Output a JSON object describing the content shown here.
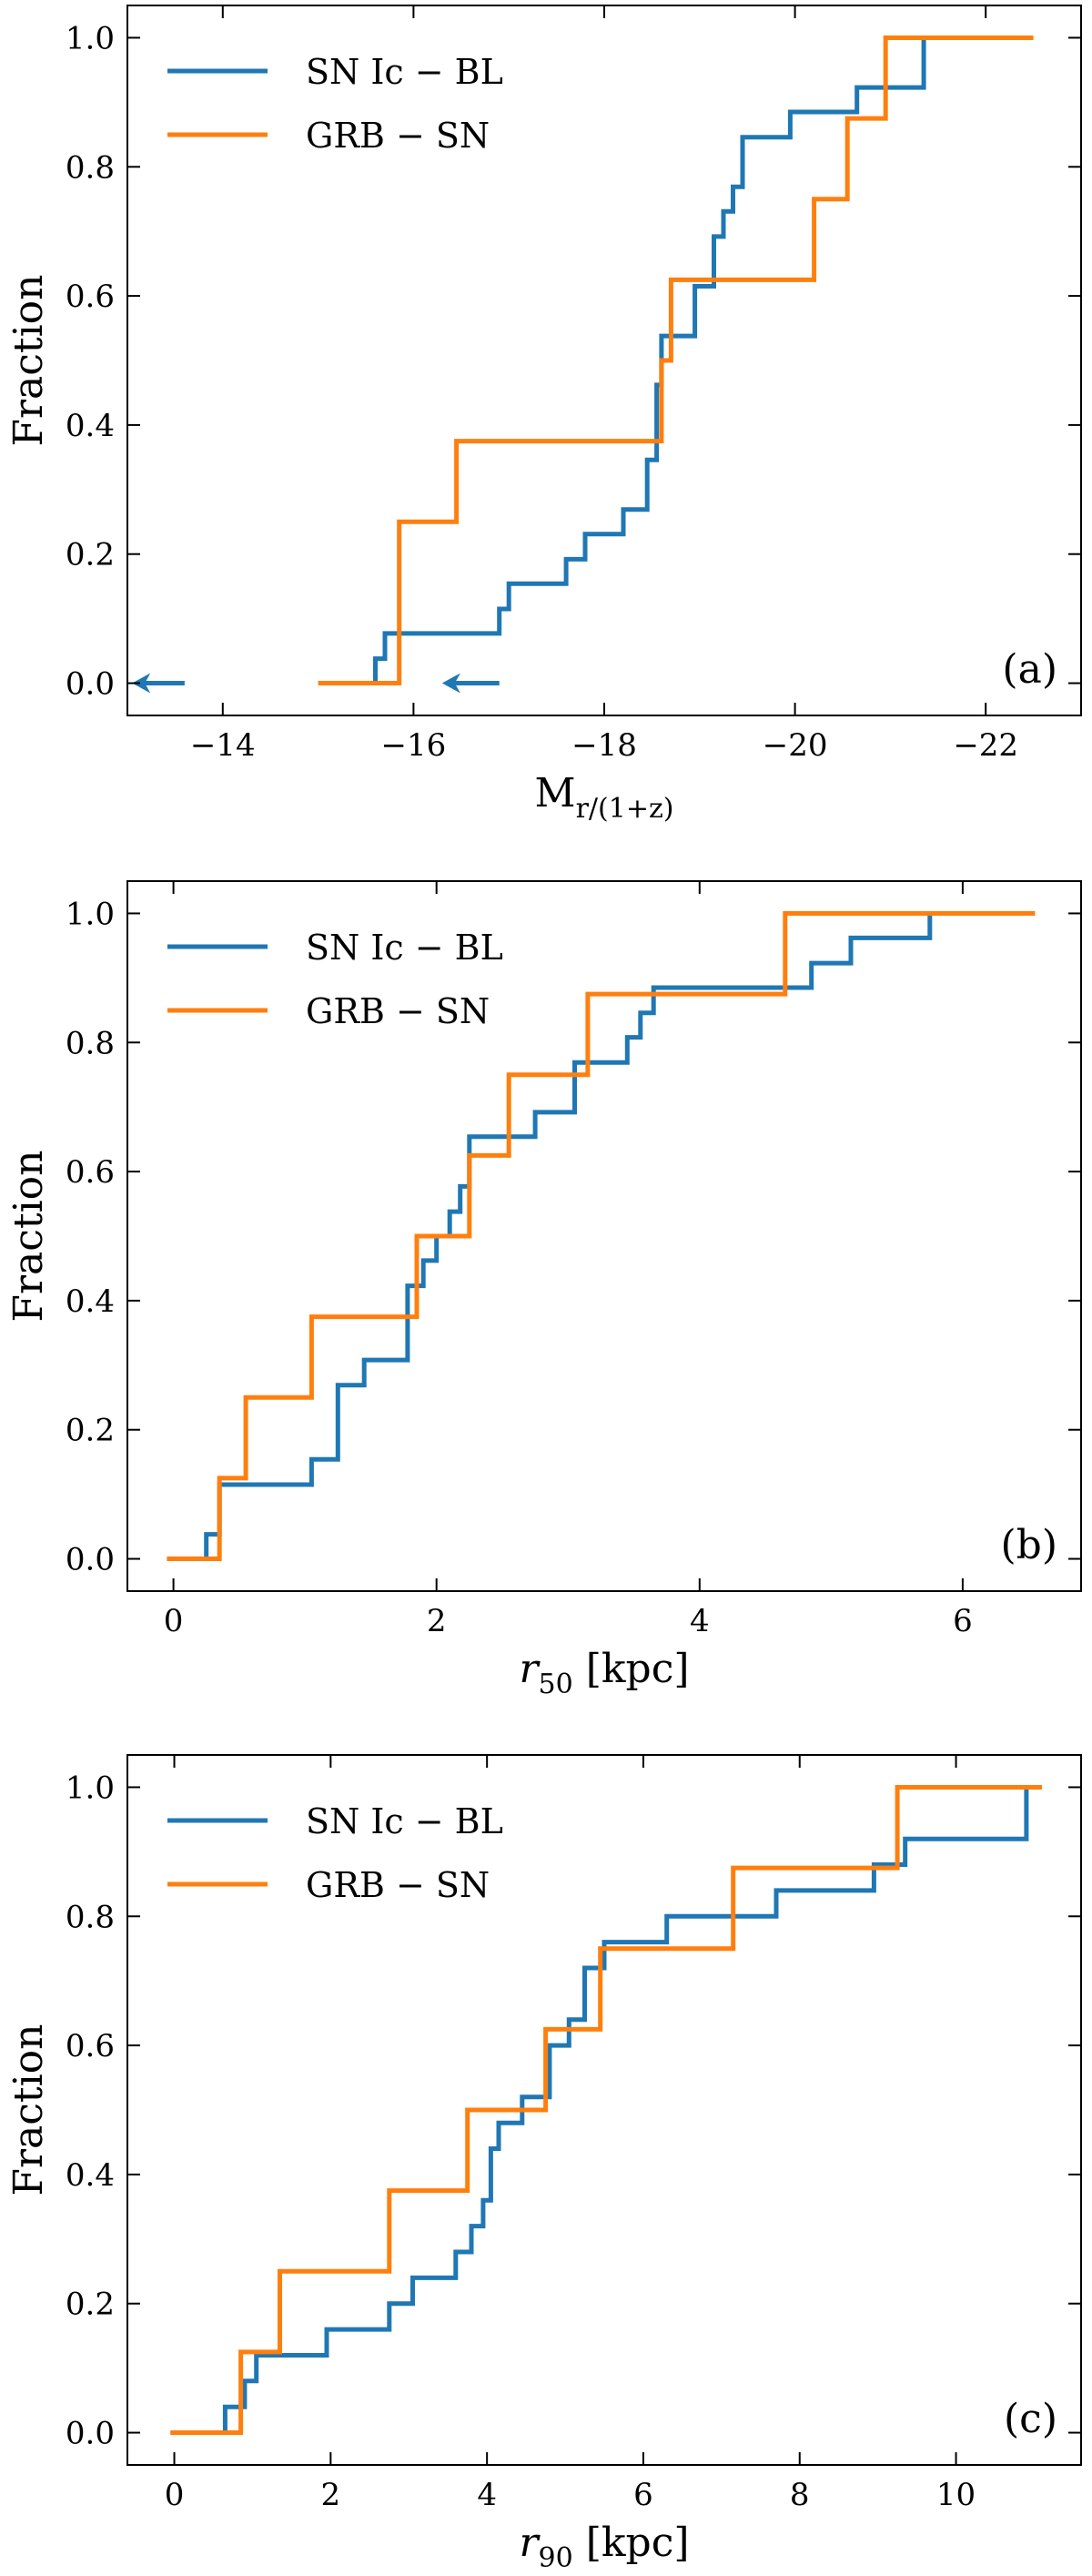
{
  "figure": {
    "colors": {
      "ic_bl": "#1f77b4",
      "grb_sn": "#ff7f0e",
      "axis": "#000000"
    }
  },
  "chart_data": [
    {
      "type": "line",
      "panel_label": "(a)",
      "xlabel_main": "M",
      "xlabel_sub": "r/(1+z)",
      "ylabel": "Fraction",
      "xlim": [
        -13,
        -23
      ],
      "ylim": [
        -0.05,
        1.05
      ],
      "xticks": [
        -14,
        -16,
        -18,
        -20,
        -22
      ],
      "xtick_labels": [
        "−14",
        "−16",
        "−18",
        "−20",
        "−22"
      ],
      "yticks": [
        0.0,
        0.2,
        0.4,
        0.6,
        0.8,
        1.0
      ],
      "ytick_labels": [
        "0.0",
        "0.2",
        "0.4",
        "0.6",
        "0.8",
        "1.0"
      ],
      "legend": [
        "SN Ic − BL",
        "GRB − SN"
      ],
      "legend_loc": "upper-left",
      "series": [
        {
          "name": "SN Ic − BL",
          "color": "#1f77b4",
          "points": [
            [
              -15.6,
              0
            ],
            [
              -15.6,
              0.038
            ],
            [
              -15.7,
              0.038
            ],
            [
              -15.7,
              0.077
            ],
            [
              -16.9,
              0.077
            ],
            [
              -16.9,
              0.115
            ],
            [
              -17.0,
              0.115
            ],
            [
              -17.0,
              0.154
            ],
            [
              -17.6,
              0.154
            ],
            [
              -17.6,
              0.192
            ],
            [
              -17.8,
              0.192
            ],
            [
              -17.8,
              0.231
            ],
            [
              -18.2,
              0.231
            ],
            [
              -18.2,
              0.269
            ],
            [
              -18.45,
              0.269
            ],
            [
              -18.45,
              0.346
            ],
            [
              -18.55,
              0.346
            ],
            [
              -18.55,
              0.462
            ],
            [
              -18.6,
              0.462
            ],
            [
              -18.6,
              0.538
            ],
            [
              -18.95,
              0.538
            ],
            [
              -18.95,
              0.615
            ],
            [
              -19.15,
              0.615
            ],
            [
              -19.15,
              0.692
            ],
            [
              -19.25,
              0.692
            ],
            [
              -19.25,
              0.731
            ],
            [
              -19.35,
              0.731
            ],
            [
              -19.35,
              0.769
            ],
            [
              -19.45,
              0.769
            ],
            [
              -19.45,
              0.846
            ],
            [
              -19.95,
              0.846
            ],
            [
              -19.95,
              0.885
            ],
            [
              -20.65,
              0.885
            ],
            [
              -20.65,
              0.923
            ],
            [
              -21.35,
              0.923
            ],
            [
              -21.35,
              1.0
            ]
          ]
        },
        {
          "name": "GRB − SN",
          "color": "#ff7f0e",
          "points": [
            [
              -15.0,
              0
            ],
            [
              -15.85,
              0
            ],
            [
              -15.85,
              0.25
            ],
            [
              -16.45,
              0.25
            ],
            [
              -16.45,
              0.375
            ],
            [
              -18.6,
              0.375
            ],
            [
              -18.6,
              0.5
            ],
            [
              -18.7,
              0.5
            ],
            [
              -18.7,
              0.625
            ],
            [
              -20.2,
              0.625
            ],
            [
              -20.2,
              0.75
            ],
            [
              -20.55,
              0.75
            ],
            [
              -20.55,
              0.875
            ],
            [
              -20.95,
              0.875
            ],
            [
              -20.95,
              1.0
            ],
            [
              -22.5,
              1.0
            ]
          ]
        }
      ],
      "upper_limit_arrows": [
        {
          "from": [
            -13.6,
            0
          ],
          "to": [
            -13.05,
            0
          ],
          "color": "#1f77b4"
        },
        {
          "from": [
            -16.9,
            0
          ],
          "to": [
            -16.3,
            0
          ],
          "color": "#1f77b4"
        }
      ]
    },
    {
      "type": "line",
      "panel_label": "(b)",
      "xlabel_main": "r",
      "xlabel_sub": "50",
      "xlabel_unit": " [kpc]",
      "ylabel": "Fraction",
      "xlim": [
        -0.35,
        6.9
      ],
      "ylim": [
        -0.05,
        1.05
      ],
      "xticks": [
        0,
        2,
        4,
        6
      ],
      "xtick_labels": [
        "0",
        "2",
        "4",
        "6"
      ],
      "yticks": [
        0.0,
        0.2,
        0.4,
        0.6,
        0.8,
        1.0
      ],
      "ytick_labels": [
        "0.0",
        "0.2",
        "0.4",
        "0.6",
        "0.8",
        "1.0"
      ],
      "legend": [
        "SN Ic − BL",
        "GRB − SN"
      ],
      "legend_loc": "upper-left",
      "series": [
        {
          "name": "SN Ic − BL",
          "color": "#1f77b4",
          "points": [
            [
              0.25,
              0
            ],
            [
              0.25,
              0.038
            ],
            [
              0.35,
              0.038
            ],
            [
              0.35,
              0.115
            ],
            [
              1.05,
              0.115
            ],
            [
              1.05,
              0.154
            ],
            [
              1.25,
              0.154
            ],
            [
              1.25,
              0.269
            ],
            [
              1.45,
              0.269
            ],
            [
              1.45,
              0.308
            ],
            [
              1.78,
              0.308
            ],
            [
              1.78,
              0.423
            ],
            [
              1.9,
              0.423
            ],
            [
              1.9,
              0.462
            ],
            [
              2.0,
              0.462
            ],
            [
              2.0,
              0.5
            ],
            [
              2.1,
              0.5
            ],
            [
              2.1,
              0.538
            ],
            [
              2.18,
              0.538
            ],
            [
              2.18,
              0.577
            ],
            [
              2.25,
              0.577
            ],
            [
              2.25,
              0.654
            ],
            [
              2.75,
              0.654
            ],
            [
              2.75,
              0.692
            ],
            [
              3.05,
              0.692
            ],
            [
              3.05,
              0.769
            ],
            [
              3.45,
              0.769
            ],
            [
              3.45,
              0.808
            ],
            [
              3.55,
              0.808
            ],
            [
              3.55,
              0.846
            ],
            [
              3.65,
              0.846
            ],
            [
              3.65,
              0.885
            ],
            [
              4.85,
              0.885
            ],
            [
              4.85,
              0.923
            ],
            [
              5.15,
              0.923
            ],
            [
              5.15,
              0.962
            ],
            [
              5.75,
              0.962
            ],
            [
              5.75,
              1.0
            ]
          ]
        },
        {
          "name": "GRB − SN",
          "color": "#ff7f0e",
          "points": [
            [
              -0.05,
              0
            ],
            [
              0.35,
              0
            ],
            [
              0.35,
              0.125
            ],
            [
              0.55,
              0.125
            ],
            [
              0.55,
              0.25
            ],
            [
              1.05,
              0.25
            ],
            [
              1.05,
              0.375
            ],
            [
              1.85,
              0.375
            ],
            [
              1.85,
              0.5
            ],
            [
              2.25,
              0.5
            ],
            [
              2.25,
              0.625
            ],
            [
              2.55,
              0.625
            ],
            [
              2.55,
              0.75
            ],
            [
              3.15,
              0.75
            ],
            [
              3.15,
              0.875
            ],
            [
              4.65,
              0.875
            ],
            [
              4.65,
              1.0
            ],
            [
              6.55,
              1.0
            ]
          ]
        }
      ]
    },
    {
      "type": "line",
      "panel_label": "(c)",
      "xlabel_main": "r",
      "xlabel_sub": "90",
      "xlabel_unit": " [kpc]",
      "ylabel": "Fraction",
      "xlim": [
        -0.6,
        11.6
      ],
      "ylim": [
        -0.05,
        1.05
      ],
      "xticks": [
        0,
        2,
        4,
        6,
        8,
        10
      ],
      "xtick_labels": [
        "0",
        "2",
        "4",
        "6",
        "8",
        "10"
      ],
      "yticks": [
        0.0,
        0.2,
        0.4,
        0.6,
        0.8,
        1.0
      ],
      "ytick_labels": [
        "0.0",
        "0.2",
        "0.4",
        "0.6",
        "0.8",
        "1.0"
      ],
      "legend": [
        "SN Ic − BL",
        "GRB − SN"
      ],
      "legend_loc": "upper-left",
      "series": [
        {
          "name": "SN Ic − BL",
          "color": "#1f77b4",
          "points": [
            [
              0.65,
              0
            ],
            [
              0.65,
              0.04
            ],
            [
              0.9,
              0.04
            ],
            [
              0.9,
              0.08
            ],
            [
              1.05,
              0.08
            ],
            [
              1.05,
              0.12
            ],
            [
              1.95,
              0.12
            ],
            [
              1.95,
              0.16
            ],
            [
              2.75,
              0.16
            ],
            [
              2.75,
              0.2
            ],
            [
              3.05,
              0.2
            ],
            [
              3.05,
              0.24
            ],
            [
              3.6,
              0.24
            ],
            [
              3.6,
              0.28
            ],
            [
              3.8,
              0.28
            ],
            [
              3.8,
              0.32
            ],
            [
              3.95,
              0.32
            ],
            [
              3.95,
              0.36
            ],
            [
              4.05,
              0.36
            ],
            [
              4.05,
              0.44
            ],
            [
              4.15,
              0.44
            ],
            [
              4.15,
              0.48
            ],
            [
              4.45,
              0.48
            ],
            [
              4.45,
              0.52
            ],
            [
              4.8,
              0.52
            ],
            [
              4.8,
              0.6
            ],
            [
              5.05,
              0.6
            ],
            [
              5.05,
              0.64
            ],
            [
              5.25,
              0.64
            ],
            [
              5.25,
              0.72
            ],
            [
              5.5,
              0.72
            ],
            [
              5.5,
              0.76
            ],
            [
              6.3,
              0.76
            ],
            [
              6.3,
              0.8
            ],
            [
              7.7,
              0.8
            ],
            [
              7.7,
              0.84
            ],
            [
              8.95,
              0.84
            ],
            [
              8.95,
              0.88
            ],
            [
              9.35,
              0.88
            ],
            [
              9.35,
              0.92
            ],
            [
              10.9,
              0.92
            ],
            [
              10.9,
              1.0
            ]
          ]
        },
        {
          "name": "GRB − SN",
          "color": "#ff7f0e",
          "points": [
            [
              -0.05,
              0
            ],
            [
              0.85,
              0
            ],
            [
              0.85,
              0.125
            ],
            [
              1.35,
              0.125
            ],
            [
              1.35,
              0.25
            ],
            [
              2.75,
              0.25
            ],
            [
              2.75,
              0.375
            ],
            [
              3.75,
              0.375
            ],
            [
              3.75,
              0.5
            ],
            [
              4.75,
              0.5
            ],
            [
              4.75,
              0.625
            ],
            [
              5.45,
              0.625
            ],
            [
              5.45,
              0.75
            ],
            [
              7.15,
              0.75
            ],
            [
              7.15,
              0.875
            ],
            [
              9.25,
              0.875
            ],
            [
              9.25,
              1.0
            ],
            [
              11.1,
              1.0
            ]
          ]
        }
      ]
    }
  ]
}
